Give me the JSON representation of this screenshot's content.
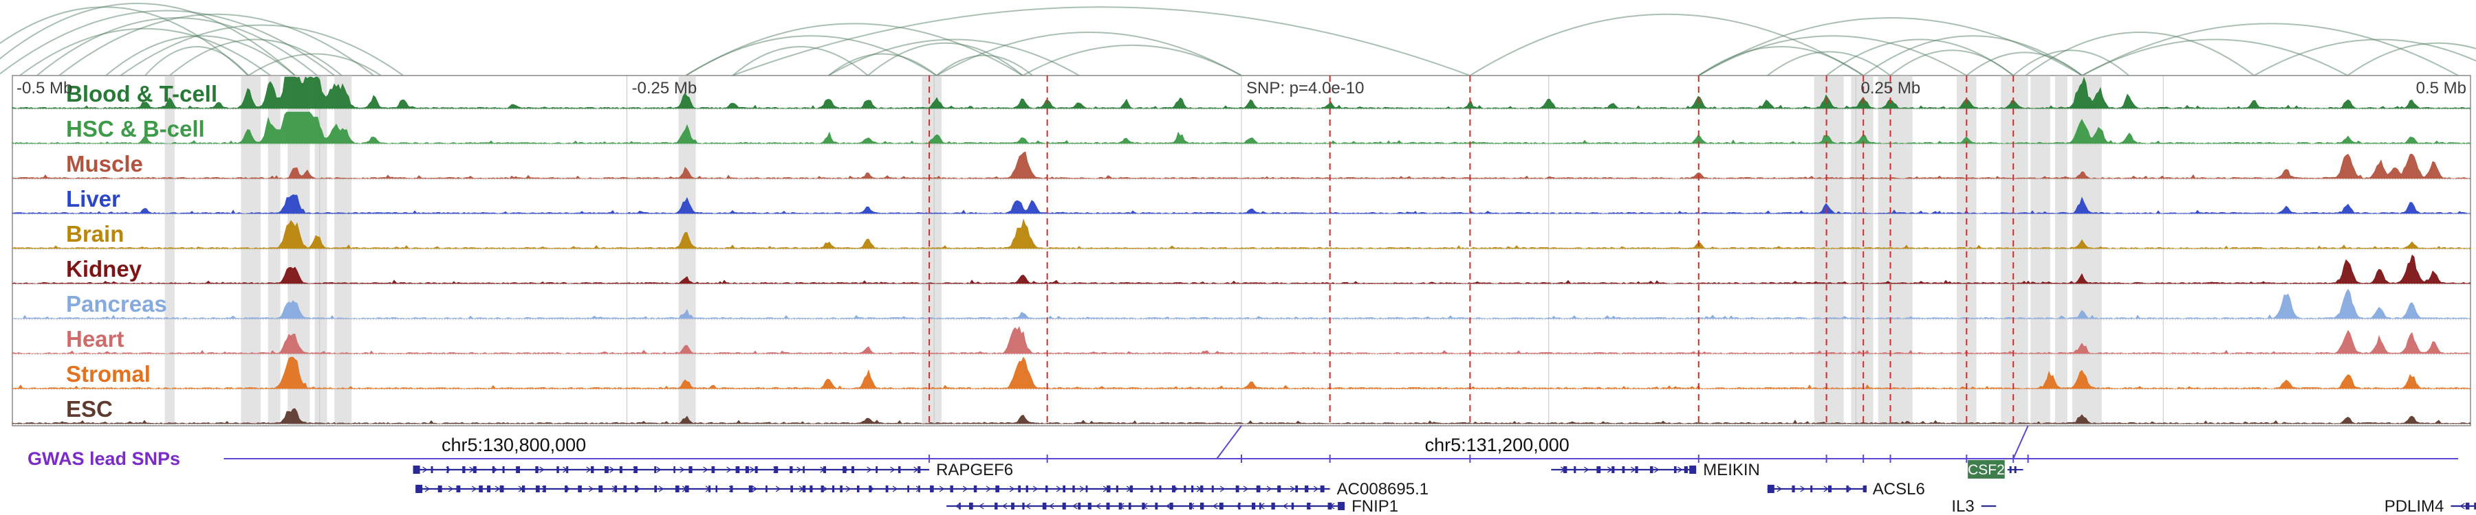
{
  "ruler": {
    "labels": [
      {
        "text": "-0.5 Mb",
        "rel_mb": -0.5,
        "edge": "left"
      },
      {
        "text": "-0.25 Mb",
        "rel_mb": -0.25
      },
      {
        "text": "SNP: p=4.0e-10",
        "rel_mb": 0
      },
      {
        "text": "0.25 Mb",
        "rel_mb": 0.25
      },
      {
        "text": "0.5 Mb",
        "rel_mb": 0.5,
        "edge": "right"
      }
    ],
    "gridline_interval_mb": 0.125
  },
  "coordinates": [
    {
      "text": "chr5:130,800,000",
      "mb": 130.8
    },
    {
      "text": "chr5:131,200,000",
      "mb": 131.2
    }
  ],
  "chart_data": {
    "type": "area",
    "subtype": "genome-browser-tracks",
    "window": {
      "chrom": "chr5",
      "start_mb": 130.596,
      "end_mb": 131.596,
      "snp_mb": 131.096
    },
    "colors": {
      "arc": "#557f63",
      "snp_line": "#d42a2a",
      "highlight_band": "#c8c8c8",
      "gridline": "#c4c4c4",
      "box_border": "#8a8a8a",
      "gene": "#29299a",
      "gene_label": "#1a1a1a",
      "gwas_line": "#5a48d0",
      "gwas_label": "#7a2bc9",
      "ruler_text": "#3c3c3c",
      "coordinate_text": "#111111",
      "csf2_box": "#3e7d4c"
    },
    "tracks": [
      {
        "name": "Blood & T-cell",
        "color": "#267a35",
        "peaks": [
          [
            130.65,
            0.25
          ],
          [
            130.66,
            0.3
          ],
          [
            130.68,
            0.2
          ],
          [
            130.692,
            0.55
          ],
          [
            130.701,
            0.75
          ],
          [
            130.708,
            0.95
          ],
          [
            130.711,
            1.0
          ],
          [
            130.716,
            0.85
          ],
          [
            130.72,
            0.9
          ],
          [
            130.727,
            0.8
          ],
          [
            130.731,
            0.6
          ],
          [
            130.743,
            0.35
          ],
          [
            130.755,
            0.3
          ],
          [
            130.8,
            0.15
          ],
          [
            130.87,
            0.45
          ],
          [
            130.889,
            0.2
          ],
          [
            130.928,
            0.35
          ],
          [
            130.944,
            0.3
          ],
          [
            130.972,
            0.35
          ],
          [
            131.007,
            0.3
          ],
          [
            131.017,
            0.25
          ],
          [
            131.03,
            0.2
          ],
          [
            131.049,
            0.2
          ],
          [
            131.071,
            0.35
          ],
          [
            131.1,
            0.25
          ],
          [
            131.132,
            0.18
          ],
          [
            131.189,
            0.15
          ],
          [
            131.221,
            0.3
          ],
          [
            131.247,
            0.15
          ],
          [
            131.282,
            0.35
          ],
          [
            131.31,
            0.25
          ],
          [
            131.334,
            0.4
          ],
          [
            131.349,
            0.35
          ],
          [
            131.36,
            0.3
          ],
          [
            131.391,
            0.35
          ],
          [
            131.41,
            0.3
          ],
          [
            131.438,
            0.95
          ],
          [
            131.445,
            0.6
          ],
          [
            131.457,
            0.4
          ],
          [
            131.508,
            0.25
          ],
          [
            131.546,
            0.3
          ],
          [
            131.572,
            0.25
          ]
        ]
      },
      {
        "name": "HSC & B-cell",
        "color": "#3c9a48",
        "peaks": [
          [
            130.65,
            0.2
          ],
          [
            130.692,
            0.45
          ],
          [
            130.701,
            0.8
          ],
          [
            130.708,
            1.0
          ],
          [
            130.712,
            0.9
          ],
          [
            130.716,
            0.95
          ],
          [
            130.72,
            0.7
          ],
          [
            130.727,
            0.6
          ],
          [
            130.731,
            0.5
          ],
          [
            130.743,
            0.25
          ],
          [
            130.87,
            0.55
          ],
          [
            130.928,
            0.25
          ],
          [
            130.944,
            0.2
          ],
          [
            130.972,
            0.3
          ],
          [
            131.007,
            0.2
          ],
          [
            131.049,
            0.15
          ],
          [
            131.071,
            0.3
          ],
          [
            131.1,
            0.2
          ],
          [
            131.282,
            0.25
          ],
          [
            131.334,
            0.3
          ],
          [
            131.349,
            0.25
          ],
          [
            131.391,
            0.2
          ],
          [
            131.438,
            0.8
          ],
          [
            131.445,
            0.5
          ],
          [
            131.457,
            0.3
          ],
          [
            131.546,
            0.2
          ],
          [
            131.572,
            0.2
          ]
        ]
      },
      {
        "name": "Muscle",
        "color": "#b2533e",
        "peaks": [
          [
            130.711,
            0.35
          ],
          [
            130.716,
            0.25
          ],
          [
            130.87,
            0.3
          ],
          [
            130.944,
            0.15
          ],
          [
            131.005,
            0.4
          ],
          [
            131.008,
            0.75
          ],
          [
            131.282,
            0.2
          ],
          [
            131.438,
            0.2
          ],
          [
            131.521,
            0.3
          ],
          [
            131.546,
            0.8
          ],
          [
            131.559,
            0.55
          ],
          [
            131.565,
            0.4
          ],
          [
            131.572,
            0.9
          ],
          [
            131.581,
            0.5
          ]
        ]
      },
      {
        "name": "Liver",
        "color": "#2c46c8",
        "peaks": [
          [
            130.65,
            0.15
          ],
          [
            130.708,
            0.45
          ],
          [
            130.711,
            0.55
          ],
          [
            130.87,
            0.5
          ],
          [
            130.944,
            0.2
          ],
          [
            131.005,
            0.5
          ],
          [
            131.011,
            0.4
          ],
          [
            131.1,
            0.15
          ],
          [
            131.334,
            0.3
          ],
          [
            131.438,
            0.45
          ],
          [
            131.521,
            0.2
          ],
          [
            131.546,
            0.3
          ],
          [
            131.572,
            0.35
          ]
        ]
      },
      {
        "name": "Brain",
        "color": "#b8860b",
        "peaks": [
          [
            130.708,
            0.6
          ],
          [
            130.711,
            0.75
          ],
          [
            130.72,
            0.4
          ],
          [
            130.87,
            0.5
          ],
          [
            130.928,
            0.2
          ],
          [
            130.944,
            0.3
          ],
          [
            131.005,
            0.45
          ],
          [
            131.008,
            0.75
          ],
          [
            131.282,
            0.2
          ],
          [
            131.438,
            0.25
          ],
          [
            131.572,
            0.2
          ]
        ]
      },
      {
        "name": "Kidney",
        "color": "#7e1416",
        "peaks": [
          [
            130.708,
            0.4
          ],
          [
            130.711,
            0.5
          ],
          [
            130.87,
            0.2
          ],
          [
            131.007,
            0.3
          ],
          [
            131.438,
            0.2
          ],
          [
            131.546,
            0.7
          ],
          [
            131.559,
            0.45
          ],
          [
            131.572,
            0.85
          ],
          [
            131.581,
            0.4
          ]
        ]
      },
      {
        "name": "Pancreas",
        "color": "#86aade",
        "peaks": [
          [
            130.708,
            0.45
          ],
          [
            130.711,
            0.5
          ],
          [
            130.87,
            0.2
          ],
          [
            131.007,
            0.2
          ],
          [
            131.438,
            0.2
          ],
          [
            131.521,
            0.8
          ],
          [
            131.546,
            0.85
          ],
          [
            131.559,
            0.4
          ],
          [
            131.572,
            0.5
          ]
        ]
      },
      {
        "name": "Heart",
        "color": "#cf6b6b",
        "peaks": [
          [
            130.708,
            0.45
          ],
          [
            130.711,
            0.5
          ],
          [
            130.87,
            0.25
          ],
          [
            130.944,
            0.2
          ],
          [
            131.003,
            0.5
          ],
          [
            131.006,
            0.8
          ],
          [
            131.438,
            0.3
          ],
          [
            131.546,
            0.75
          ],
          [
            131.559,
            0.5
          ],
          [
            131.572,
            0.6
          ],
          [
            131.581,
            0.35
          ]
        ]
      },
      {
        "name": "Stromal",
        "color": "#e2721f",
        "peaks": [
          [
            130.708,
            0.7
          ],
          [
            130.711,
            0.8
          ],
          [
            130.87,
            0.3
          ],
          [
            130.928,
            0.3
          ],
          [
            130.944,
            0.5
          ],
          [
            131.005,
            0.6
          ],
          [
            131.008,
            0.8
          ],
          [
            131.1,
            0.2
          ],
          [
            131.425,
            0.5
          ],
          [
            131.438,
            0.6
          ],
          [
            131.521,
            0.3
          ],
          [
            131.546,
            0.5
          ],
          [
            131.572,
            0.45
          ]
        ]
      },
      {
        "name": "ESC",
        "color": "#5f3a2e",
        "peaks": [
          [
            130.708,
            0.35
          ],
          [
            130.711,
            0.4
          ],
          [
            130.87,
            0.2
          ],
          [
            130.944,
            0.2
          ],
          [
            131.007,
            0.25
          ],
          [
            131.438,
            0.3
          ],
          [
            131.546,
            0.2
          ],
          [
            131.572,
            0.25
          ]
        ]
      }
    ],
    "arcs": [
      [
        130.575,
        130.692,
        0.95
      ],
      [
        130.583,
        130.711,
        1.0
      ],
      [
        130.59,
        130.727,
        0.9
      ],
      [
        130.599,
        130.701,
        0.65
      ],
      [
        130.606,
        130.72,
        0.8
      ],
      [
        130.615,
        130.743,
        0.85
      ],
      [
        130.634,
        130.711,
        0.55
      ],
      [
        130.65,
        130.692,
        0.4
      ],
      [
        130.66,
        130.73,
        0.5
      ],
      [
        130.692,
        130.746,
        0.3
      ],
      [
        130.64,
        130.755,
        0.7
      ],
      [
        130.87,
        130.972,
        0.55
      ],
      [
        130.889,
        130.944,
        0.4
      ],
      [
        130.87,
        131.007,
        0.72
      ],
      [
        130.928,
        130.972,
        0.3
      ],
      [
        130.944,
        131.007,
        0.45
      ],
      [
        130.972,
        131.011,
        0.28
      ],
      [
        130.928,
        131.03,
        0.5
      ],
      [
        130.972,
        131.096,
        0.6
      ],
      [
        131.007,
        131.096,
        0.42
      ],
      [
        130.889,
        131.189,
        0.95
      ],
      [
        131.282,
        131.349,
        0.4
      ],
      [
        131.282,
        131.391,
        0.55
      ],
      [
        131.31,
        131.36,
        0.33
      ],
      [
        131.334,
        131.41,
        0.5
      ],
      [
        131.349,
        131.438,
        0.55
      ],
      [
        131.36,
        131.41,
        0.35
      ],
      [
        131.391,
        131.438,
        0.32
      ],
      [
        131.41,
        131.457,
        0.35
      ],
      [
        131.415,
        131.508,
        0.6
      ],
      [
        131.438,
        131.546,
        0.5
      ],
      [
        131.438,
        131.591,
        0.72
      ],
      [
        131.282,
        131.438,
        0.8
      ],
      [
        131.189,
        131.349,
        0.85
      ],
      [
        131.508,
        131.61,
        0.5
      ],
      [
        131.546,
        131.62,
        0.45
      ]
    ],
    "snp_lines_mb": [
      130.969,
      131.017,
      131.132,
      131.189,
      131.282,
      131.334,
      131.349,
      131.36,
      131.391,
      131.41
    ],
    "highlight_bands_mb": [
      [
        130.658,
        130.662
      ],
      [
        130.689,
        130.697
      ],
      [
        130.7,
        130.705
      ],
      [
        130.708,
        130.717
      ],
      [
        130.719,
        130.724
      ],
      [
        130.727,
        130.734
      ],
      [
        130.867,
        130.874
      ],
      [
        130.966,
        130.974
      ],
      [
        131.329,
        131.341
      ],
      [
        131.344,
        131.353
      ],
      [
        131.355,
        131.369
      ],
      [
        131.387,
        131.395
      ],
      [
        131.405,
        131.416
      ],
      [
        131.417,
        131.425
      ],
      [
        131.427,
        131.432
      ],
      [
        131.434,
        131.446
      ]
    ],
    "genes": [
      {
        "name": "RAPGEF6",
        "row": 1,
        "start_mb": 130.759,
        "end_mb": 130.969,
        "strand": "+",
        "label_side": "right",
        "style": "line",
        "big_exon": "start"
      },
      {
        "name": "MEIKIN",
        "row": 1,
        "start_mb": 131.222,
        "end_mb": 131.281,
        "strand": "+",
        "label_side": "right",
        "style": "line",
        "big_exon": "end"
      },
      {
        "name": "CSF2",
        "row": 1,
        "start_mb": 131.3915,
        "end_mb": 131.4065,
        "strand": "+",
        "label_side": "inside",
        "style": "box",
        "glyph_end_mb": 131.414
      },
      {
        "name": "AC008695.1",
        "row": 2,
        "start_mb": 130.76,
        "end_mb": 131.132,
        "strand": "+",
        "label_side": "right",
        "style": "line",
        "big_exon": "start"
      },
      {
        "name": "ACSL6",
        "row": 2,
        "start_mb": 131.31,
        "end_mb": 131.35,
        "strand": "+",
        "label_side": "right",
        "style": "line",
        "big_exon": "start"
      },
      {
        "name": "FNIP1",
        "row": 3,
        "start_mb": 130.976,
        "end_mb": 131.138,
        "strand": "-",
        "label_side": "right",
        "style": "line",
        "big_exon": "end"
      },
      {
        "name": "IL3",
        "row": 3,
        "start_mb": 131.397,
        "end_mb": 131.403,
        "strand": "+",
        "label_side": "left",
        "style": "line"
      },
      {
        "name": "PDLIM4",
        "row": 3,
        "start_mb": 131.588,
        "end_mb": 131.602,
        "strand": "-",
        "label_side": "left",
        "style": "line"
      }
    ],
    "gwas": {
      "label": "GWAS lead SNPs",
      "line_start_mb": 130.682,
      "line_end_mb": 131.591,
      "ticks_mb": [
        130.969,
        131.017,
        131.096,
        131.132,
        131.189,
        131.282,
        131.334,
        131.349,
        131.36,
        131.391,
        131.41,
        131.416
      ],
      "lead_connectors": [
        {
          "top_mb": 131.096,
          "bottom_mb": 131.086
        },
        {
          "top_mb": 131.416,
          "bottom_mb": 131.41
        }
      ]
    }
  }
}
